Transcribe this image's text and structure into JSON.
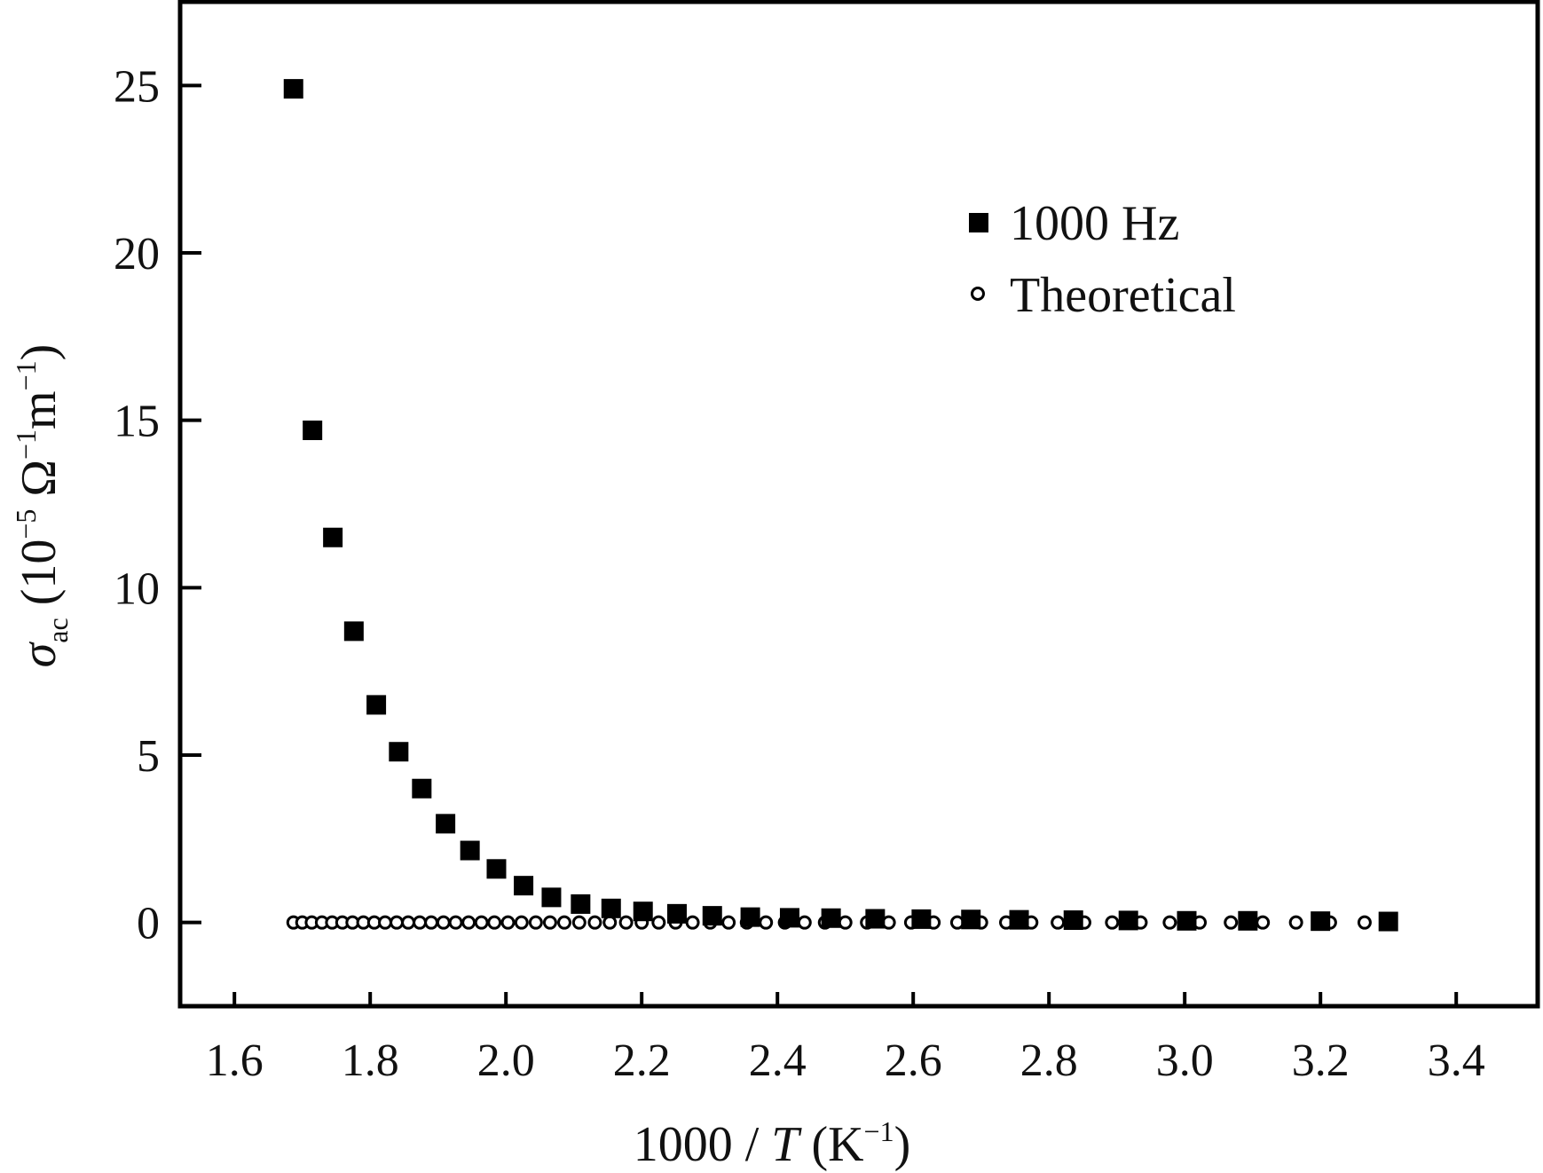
{
  "chart_data": {
    "type": "scatter",
    "xlabel": {
      "prefix": "1000 / ",
      "var": "T",
      "unit_open": " (K",
      "sup": "−1",
      "unit_close": ")"
    },
    "ylabel": {
      "sym": "σ",
      "sub": "ac",
      "open": " (10",
      "sup1": "−5",
      "mid": " Ω",
      "sup2": "−1",
      "m": "m",
      "sup3": "−1",
      "close": ")"
    },
    "xlim": [
      1.52,
      3.52
    ],
    "ylim": [
      -2.5,
      27.5
    ],
    "x_ticks": [
      "1.6",
      "1.8",
      "2.0",
      "2.2",
      "2.4",
      "2.6",
      "2.8",
      "3.0",
      "3.2",
      "3.4"
    ],
    "y_ticks": [
      "0",
      "5",
      "10",
      "15",
      "20",
      "25"
    ],
    "grid": false,
    "legend_position": "top-right",
    "series": [
      {
        "name": "1000 Hz",
        "marker": "filled-square",
        "color": "#000000",
        "x": [
          1.687,
          1.715,
          1.745,
          1.776,
          1.809,
          1.842,
          1.876,
          1.911,
          1.947,
          1.986,
          2.026,
          2.067,
          2.11,
          2.155,
          2.202,
          2.252,
          2.304,
          2.36,
          2.418,
          2.479,
          2.544,
          2.612,
          2.685,
          2.756,
          2.836,
          2.917,
          3.003,
          3.093,
          3.2,
          3.3
        ],
        "y": [
          24.9,
          14.7,
          11.5,
          8.7,
          6.5,
          5.1,
          4.0,
          2.95,
          2.15,
          1.6,
          1.1,
          0.75,
          0.55,
          0.42,
          0.33,
          0.26,
          0.2,
          0.16,
          0.14,
          0.13,
          0.11,
          0.1,
          0.09,
          0.08,
          0.07,
          0.06,
          0.05,
          0.05,
          0.04,
          0.03
        ]
      },
      {
        "name": "Theoretical",
        "marker": "open-circle",
        "color": "#000000",
        "x": [
          1.687,
          1.7,
          1.714,
          1.729,
          1.744,
          1.759,
          1.774,
          1.79,
          1.806,
          1.822,
          1.839,
          1.856,
          1.873,
          1.89,
          1.908,
          1.926,
          1.945,
          1.964,
          1.983,
          2.003,
          2.023,
          2.044,
          2.065,
          2.086,
          2.108,
          2.131,
          2.153,
          2.177,
          2.2,
          2.225,
          2.25,
          2.275,
          2.301,
          2.328,
          2.355,
          2.383,
          2.411,
          2.44,
          2.47,
          2.5,
          2.532,
          2.564,
          2.597,
          2.63,
          2.665,
          2.7,
          2.737,
          2.774,
          2.813,
          2.852,
          2.893,
          2.935,
          2.978,
          3.022,
          3.068,
          3.115,
          3.164,
          3.214,
          3.265,
          3.3
        ],
        "y": [
          0,
          0,
          0,
          0,
          0,
          0,
          0,
          0,
          0,
          0,
          0,
          0,
          0,
          0,
          0,
          0,
          0,
          0,
          0,
          0,
          0,
          0,
          0,
          0,
          0,
          0,
          0,
          0,
          0,
          0,
          0,
          0,
          0,
          0,
          0,
          0,
          0,
          0,
          0,
          0,
          0,
          0,
          0,
          0,
          0,
          0,
          0,
          0,
          0,
          0,
          0,
          0,
          0,
          0,
          0,
          0,
          0,
          0,
          0,
          0
        ]
      }
    ]
  }
}
